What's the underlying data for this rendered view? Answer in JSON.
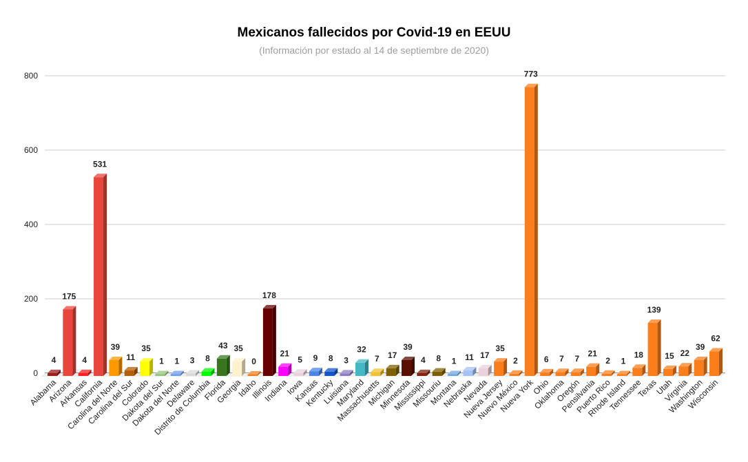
{
  "chart_data": {
    "type": "bar",
    "title": "Mexicanos fallecidos por Covid-19 en EEUU",
    "subtitle": "(Información por estado al 14 de septiembre de 2020)",
    "xlabel": "",
    "ylabel": "",
    "ylim": [
      0,
      800
    ],
    "yticks": [
      0,
      200,
      400,
      600,
      800
    ],
    "grid": true,
    "legend": "none",
    "style": "3d-bars",
    "categories": [
      "Alabama",
      "Arizona",
      "Arkansas",
      "California",
      "Carolina del Norte",
      "Carolina del Sur",
      "Colorado",
      "Dakota del Sur",
      "Dakota del Norte",
      "Delaware",
      "Distrito de Columbia",
      "Florida",
      "Georgia",
      "Idaho",
      "Illinois",
      "Indiana",
      "Iowa",
      "Kansas",
      "Kentucky",
      "Luisiana",
      "Maryland",
      "Massachusetts",
      "Michigan",
      "Minnesota",
      "Mississippi",
      "Missouriu",
      "Montana",
      "Nebraska",
      "Nevada",
      "Nueva Jersey",
      "Nuevo México",
      "Nueva York",
      "Ohio",
      "Oklahoma",
      "Oregón",
      "Pensilvania",
      "Puerto Rico",
      "Rhode Island",
      "Tennessee",
      "Texas",
      "Utah",
      "Virginia",
      "Washington",
      "Wisconsin"
    ],
    "values": [
      4,
      175,
      4,
      531,
      39,
      11,
      35,
      1,
      1,
      3,
      8,
      43,
      35,
      0,
      178,
      21,
      5,
      9,
      8,
      3,
      32,
      7,
      17,
      39,
      4,
      8,
      1,
      11,
      17,
      35,
      2,
      773,
      6,
      7,
      7,
      21,
      2,
      1,
      18,
      139,
      15,
      22,
      39,
      62
    ],
    "colors": [
      "#a01e1e",
      "#e8453c",
      "#ff1f1f",
      "#e8453c",
      "#ff9900",
      "#b45f06",
      "#ffff00",
      "#93c47d",
      "#6d9eeb",
      "#d9d9d9",
      "#00ff00",
      "#38761d",
      "#fff2cc",
      "#fa7f1c",
      "#660000",
      "#ff00ff",
      "#ead1dc",
      "#4a86e8",
      "#1155cc",
      "#8e7cc3",
      "#45b7c4",
      "#f1c232",
      "#7f6000",
      "#5b0f00",
      "#85200c",
      "#7f6000",
      "#6fa8dc",
      "#a4c2f4",
      "#ead1dc",
      "#fa7f1c",
      "#fa7f1c",
      "#fa7f1c",
      "#fa7f1c",
      "#fa7f1c",
      "#fa7f1c",
      "#fa7f1c",
      "#fa7f1c",
      "#fa7f1c",
      "#fa7f1c",
      "#fa7f1c",
      "#fa7f1c",
      "#fa7f1c",
      "#fa7f1c",
      "#fa7f1c"
    ]
  }
}
